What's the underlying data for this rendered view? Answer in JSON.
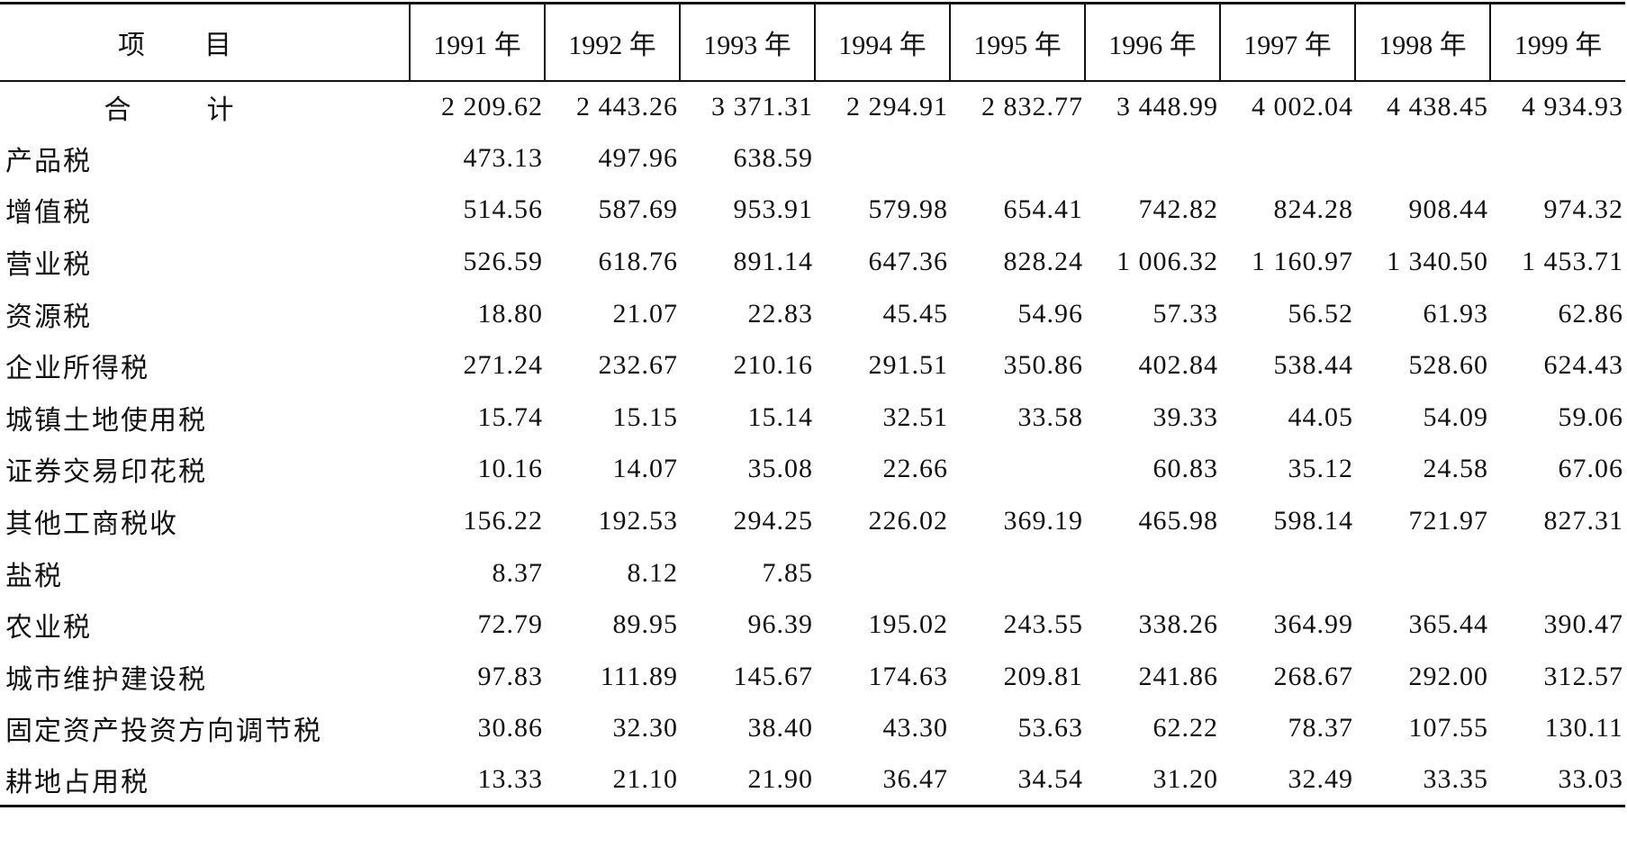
{
  "table": {
    "header": [
      "项目",
      "1991 年",
      "1992 年",
      "1993 年",
      "1994 年",
      "1995 年",
      "1996 年",
      "1997 年",
      "1998 年",
      "1999 年"
    ],
    "rows": [
      {
        "label": "合计",
        "values": [
          "2 209.62",
          "2 443.26",
          "3 371.31",
          "2 294.91",
          "2 832.77",
          "3 448.99",
          "4 002.04",
          "4 438.45",
          "4 934.93"
        ]
      },
      {
        "label": "产品税",
        "values": [
          "473.13",
          "497.96",
          "638.59",
          null,
          null,
          null,
          null,
          null,
          null
        ]
      },
      {
        "label": "增值税",
        "values": [
          "514.56",
          "587.69",
          "953.91",
          "579.98",
          "654.41",
          "742.82",
          "824.28",
          "908.44",
          "974.32"
        ]
      },
      {
        "label": "营业税",
        "values": [
          "526.59",
          "618.76",
          "891.14",
          "647.36",
          "828.24",
          "1 006.32",
          "1 160.97",
          "1 340.50",
          "1 453.71"
        ]
      },
      {
        "label": "资源税",
        "values": [
          "18.80",
          "21.07",
          "22.83",
          "45.45",
          "54.96",
          "57.33",
          "56.52",
          "61.93",
          "62.86"
        ]
      },
      {
        "label": "企业所得税",
        "values": [
          "271.24",
          "232.67",
          "210.16",
          "291.51",
          "350.86",
          "402.84",
          "538.44",
          "528.60",
          "624.43"
        ]
      },
      {
        "label": "城镇土地使用税",
        "values": [
          "15.74",
          "15.15",
          "15.14",
          "32.51",
          "33.58",
          "39.33",
          "44.05",
          "54.09",
          "59.06"
        ]
      },
      {
        "label": "证券交易印花税",
        "values": [
          "10.16",
          "14.07",
          "35.08",
          "22.66",
          null,
          "60.83",
          "35.12",
          "24.58",
          "67.06"
        ]
      },
      {
        "label": "其他工商税收",
        "values": [
          "156.22",
          "192.53",
          "294.25",
          "226.02",
          "369.19",
          "465.98",
          "598.14",
          "721.97",
          "827.31"
        ]
      },
      {
        "label": "盐税",
        "values": [
          "8.37",
          "8.12",
          "7.85",
          null,
          null,
          null,
          null,
          null,
          null
        ]
      },
      {
        "label": "农业税",
        "values": [
          "72.79",
          "89.95",
          "96.39",
          "195.02",
          "243.55",
          "338.26",
          "364.99",
          "365.44",
          "390.47"
        ]
      },
      {
        "label": "城市维护建设税",
        "values": [
          "97.83",
          "111.89",
          "145.67",
          "174.63",
          "209.81",
          "241.86",
          "268.67",
          "292.00",
          "312.57"
        ]
      },
      {
        "label": "固定资产投资方向调节税",
        "values": [
          "30.86",
          "32.30",
          "38.40",
          "43.30",
          "53.63",
          "62.22",
          "78.37",
          "107.55",
          "130.11"
        ]
      },
      {
        "label": "耕地占用税",
        "values": [
          "13.33",
          "21.10",
          "21.90",
          "36.47",
          "34.54",
          "31.20",
          "32.49",
          "33.35",
          "33.03"
        ]
      }
    ]
  }
}
